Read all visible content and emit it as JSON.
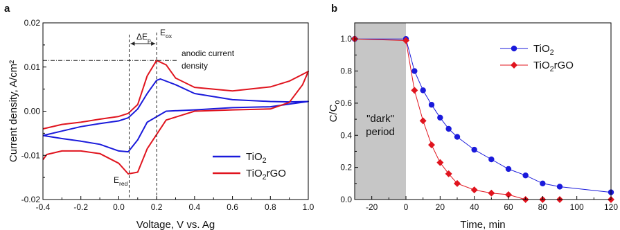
{
  "chart_data": [
    {
      "panel": "a",
      "type": "line",
      "xlabel": "Voltage, V vs. Ag",
      "ylabel": "Current density, A/cm²",
      "xlim": [
        -0.4,
        1.0
      ],
      "ylim": [
        -0.02,
        0.02
      ],
      "xticks": [
        -0.4,
        -0.2,
        0.0,
        0.2,
        0.4,
        0.6,
        0.8,
        1.0
      ],
      "xtick_labels": [
        "-0.4",
        "-0.2",
        "0.0",
        "0.2",
        "0.4",
        "0.6",
        "0.8",
        "1.0"
      ],
      "yticks": [
        -0.02,
        -0.01,
        0.0,
        0.01,
        0.02
      ],
      "ytick_labels": [
        "-0.02",
        "-0.01",
        "0.00",
        "0.01",
        "0.02"
      ],
      "legend_position": "bottom-right",
      "grid": false,
      "series": [
        {
          "name": "TiO₂",
          "color": "#1a1adb",
          "x": [
            -0.4,
            -0.3,
            -0.2,
            -0.1,
            0.0,
            0.05,
            0.1,
            0.15,
            0.2,
            0.22,
            0.3,
            0.4,
            0.6,
            0.8,
            0.9,
            1.0,
            0.9,
            0.8,
            0.6,
            0.4,
            0.25,
            0.15,
            0.1,
            0.05,
            0.0,
            -0.1,
            -0.2,
            -0.3,
            -0.4
          ],
          "y": [
            -0.0055,
            -0.0045,
            -0.0035,
            -0.0028,
            -0.0022,
            -0.0015,
            0.0005,
            0.004,
            0.007,
            0.0073,
            0.006,
            0.004,
            0.0026,
            0.0022,
            0.0021,
            0.0022,
            0.0016,
            0.001,
            0.0008,
            0.0003,
            0.0,
            -0.0025,
            -0.0065,
            -0.0092,
            -0.009,
            -0.0075,
            -0.0068,
            -0.0062,
            -0.0055
          ]
        },
        {
          "name": "TiO₂+rGO",
          "color": "#e0141e",
          "x": [
            -0.4,
            -0.3,
            -0.2,
            -0.1,
            0.0,
            0.05,
            0.1,
            0.15,
            0.2,
            0.25,
            0.3,
            0.4,
            0.6,
            0.8,
            0.9,
            1.0,
            0.97,
            0.9,
            0.8,
            0.6,
            0.4,
            0.25,
            0.15,
            0.1,
            0.05,
            0.0,
            -0.1,
            -0.2,
            -0.3,
            -0.38,
            -0.4
          ],
          "y": [
            -0.004,
            -0.003,
            -0.0025,
            -0.0018,
            -0.0012,
            -0.0005,
            0.0015,
            0.008,
            0.0115,
            0.0105,
            0.0075,
            0.0054,
            0.0046,
            0.0055,
            0.0068,
            0.009,
            0.006,
            0.002,
            0.0005,
            0.0003,
            0.0,
            -0.002,
            -0.0085,
            -0.0138,
            -0.0142,
            -0.0118,
            -0.0096,
            -0.009,
            -0.009,
            -0.0098,
            -0.011
          ]
        }
      ],
      "annotations": {
        "delta_ep": "ΔE",
        "delta_ep_sub": "p",
        "e_ox": "E",
        "e_ox_sub": "ox",
        "e_red": "E",
        "e_red_sub": "red",
        "anodic_line1": "anodic current",
        "anodic_line2": "density",
        "e_ox_value": 0.2,
        "e_red_value": 0.055,
        "anodic_level": 0.0115
      }
    },
    {
      "panel": "b",
      "type": "line",
      "xlabel": "Time, min",
      "ylabel": "C/C₀",
      "xlim": [
        -30,
        120
      ],
      "ylim": [
        0.0,
        1.1
      ],
      "xticks": [
        -20,
        0,
        20,
        40,
        60,
        80,
        100,
        120
      ],
      "xtick_labels": [
        "-20",
        "0",
        "20",
        "40",
        "60",
        "80",
        "100",
        "120"
      ],
      "yticks": [
        0.0,
        0.2,
        0.4,
        0.6,
        0.8,
        1.0
      ],
      "ytick_labels": [
        "0.0",
        "0.2",
        "0.4",
        "0.6",
        "0.8",
        "1.0"
      ],
      "legend_position": "top-right",
      "grid": false,
      "shaded_region": {
        "x": [
          -30,
          0
        ],
        "color": "#c6c6c6",
        "label_line1": "\"dark\"",
        "label_line2": "period"
      },
      "series": [
        {
          "name": "TiO₂",
          "color": "#1a1adb",
          "marker": "circle",
          "x": [
            -30,
            0,
            5,
            10,
            15,
            20,
            25,
            30,
            40,
            50,
            60,
            70,
            80,
            90,
            120
          ],
          "y": [
            1.0,
            1.0,
            0.8,
            0.68,
            0.59,
            0.51,
            0.44,
            0.39,
            0.31,
            0.25,
            0.19,
            0.15,
            0.1,
            0.08,
            0.045
          ]
        },
        {
          "name": "TiO₂+rGO",
          "color": "#e0141e",
          "marker": "diamond",
          "x": [
            -30,
            0,
            5,
            10,
            15,
            20,
            25,
            30,
            40,
            50,
            60,
            70,
            80,
            90,
            120
          ],
          "y": [
            1.0,
            0.99,
            0.68,
            0.49,
            0.34,
            0.23,
            0.16,
            0.1,
            0.06,
            0.04,
            0.03,
            0.0,
            0.0,
            0.0,
            0.0
          ]
        }
      ]
    }
  ]
}
